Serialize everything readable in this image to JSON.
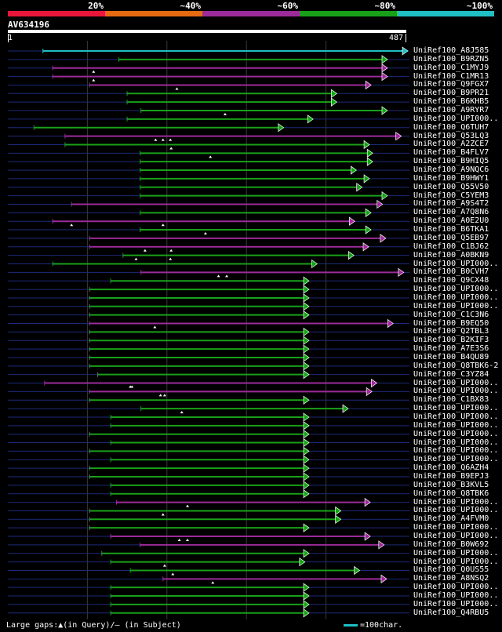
{
  "legend": [
    {
      "label": "20%",
      "color": "#e8173a"
    },
    {
      "label": "~40%",
      "color": "#e56a12"
    },
    {
      "label": "~60%",
      "color": "#9c2b9a"
    },
    {
      "label": "~80%",
      "color": "#19a019"
    },
    {
      "label": "~100%",
      "color": "#1fbfc4"
    }
  ],
  "query": {
    "name": "AV634196",
    "start_label": "1",
    "end_label": "487",
    "length": 487
  },
  "colors": {
    "background": "#000000",
    "track": "#1e2a7a",
    "grid": "#3a3a3a",
    "gap_marker": "#ffffff"
  },
  "hits": [
    {
      "name": "UniRef100_A8J585",
      "start": 43,
      "end": 487,
      "color": "#1fbfc4",
      "gaps": []
    },
    {
      "name": "UniRef100_B9RZN5",
      "start": 136,
      "end": 462,
      "color": "#19a019",
      "gaps": []
    },
    {
      "name": "UniRef100_C1MYJ9",
      "start": 55,
      "end": 462,
      "color": "#9c2b9a",
      "gaps": [
        105
      ]
    },
    {
      "name": "UniRef100_C1MR13",
      "start": 55,
      "end": 462,
      "color": "#9c2b9a",
      "gaps": [
        105
      ]
    },
    {
      "name": "UniRef100_Q9FGX7",
      "start": 100,
      "end": 442,
      "color": "#9c2b9a",
      "gaps": [
        207
      ]
    },
    {
      "name": "UniRef100_B9PR21",
      "start": 146,
      "end": 400,
      "color": "#19a019",
      "gaps": []
    },
    {
      "name": "UniRef100_B6KHB5",
      "start": 146,
      "end": 400,
      "color": "#19a019",
      "gaps": []
    },
    {
      "name": "UniRef100_A9RYR7",
      "start": 163,
      "end": 462,
      "color": "#19a019",
      "gaps": [
        266
      ]
    },
    {
      "name": "UniRef100_UPI000..",
      "start": 146,
      "end": 371,
      "color": "#19a019",
      "gaps": []
    },
    {
      "name": "UniRef100_Q6TUH7",
      "start": 32,
      "end": 335,
      "color": "#19a019",
      "gaps": []
    },
    {
      "name": "UniRef100_Q53LQ3",
      "start": 70,
      "end": 479,
      "color": "#9c2b9a",
      "gaps": [
        181,
        190,
        199
      ]
    },
    {
      "name": "UniRef100_A2ZCE7",
      "start": 70,
      "end": 440,
      "color": "#19a019",
      "gaps": [
        200
      ]
    },
    {
      "name": "UniRef100_B4FLV7",
      "start": 162,
      "end": 444,
      "color": "#19a019",
      "gaps": [
        248
      ]
    },
    {
      "name": "UniRef100_B9HIQ5",
      "start": 162,
      "end": 444,
      "color": "#19a019",
      "gaps": []
    },
    {
      "name": "UniRef100_A9NQC6",
      "start": 162,
      "end": 424,
      "color": "#19a019",
      "gaps": []
    },
    {
      "name": "UniRef100_B9HWY1",
      "start": 162,
      "end": 440,
      "color": "#19a019",
      "gaps": []
    },
    {
      "name": "UniRef100_Q55V50",
      "start": 162,
      "end": 431,
      "color": "#19a019",
      "gaps": []
    },
    {
      "name": "UniRef100_C5YEM3",
      "start": 162,
      "end": 462,
      "color": "#19a019",
      "gaps": []
    },
    {
      "name": "UniRef100_A9S4T2",
      "start": 78,
      "end": 456,
      "color": "#9c2b9a",
      "gaps": []
    },
    {
      "name": "UniRef100_A7Q8N6",
      "start": 162,
      "end": 442,
      "color": "#19a019",
      "gaps": []
    },
    {
      "name": "UniRef100_A0E2U0",
      "start": 55,
      "end": 422,
      "color": "#9c2b9a",
      "gaps": [
        78,
        190
      ]
    },
    {
      "name": "UniRef100_B6TKA1",
      "start": 162,
      "end": 442,
      "color": "#19a019",
      "gaps": [
        242
      ]
    },
    {
      "name": "UniRef100_Q5EB97",
      "start": 100,
      "end": 460,
      "color": "#9c2b9a",
      "gaps": []
    },
    {
      "name": "UniRef100_C1BJ62",
      "start": 100,
      "end": 439,
      "color": "#9c2b9a",
      "gaps": [
        168,
        200
      ]
    },
    {
      "name": "UniRef100_A0BKN9",
      "start": 141,
      "end": 421,
      "color": "#19a019",
      "gaps": [
        157,
        199
      ]
    },
    {
      "name": "UniRef100_UPI000..",
      "start": 55,
      "end": 376,
      "color": "#19a019",
      "gaps": []
    },
    {
      "name": "UniRef100_B0CVH7",
      "start": 163,
      "end": 482,
      "color": "#9c2b9a",
      "gaps": [
        258,
        268
      ]
    },
    {
      "name": "UniRef100_Q9CX48",
      "start": 126,
      "end": 366,
      "color": "#19a019",
      "gaps": []
    },
    {
      "name": "UniRef100_UPI000..",
      "start": 100,
      "end": 366,
      "color": "#19a019",
      "gaps": []
    },
    {
      "name": "UniRef100_UPI000..",
      "start": 100,
      "end": 366,
      "color": "#19a019",
      "gaps": []
    },
    {
      "name": "UniRef100_UPI000..",
      "start": 100,
      "end": 366,
      "color": "#19a019",
      "gaps": []
    },
    {
      "name": "UniRef100_C1C3N6",
      "start": 100,
      "end": 366,
      "color": "#19a019",
      "gaps": []
    },
    {
      "name": "UniRef100_B9EQ50",
      "start": 100,
      "end": 469,
      "color": "#9c2b9a",
      "gaps": [
        180
      ]
    },
    {
      "name": "UniRef100_Q2TBL3",
      "start": 100,
      "end": 366,
      "color": "#19a019",
      "gaps": []
    },
    {
      "name": "UniRef100_B2KIF3",
      "start": 100,
      "end": 366,
      "color": "#19a019",
      "gaps": []
    },
    {
      "name": "UniRef100_A7E3S6",
      "start": 100,
      "end": 366,
      "color": "#19a019",
      "gaps": []
    },
    {
      "name": "UniRef100_B4QU89",
      "start": 100,
      "end": 366,
      "color": "#19a019",
      "gaps": []
    },
    {
      "name": "UniRef100_Q8TBK6-2",
      "start": 100,
      "end": 366,
      "color": "#19a019",
      "gaps": []
    },
    {
      "name": "UniRef100_C3YZ84",
      "start": 110,
      "end": 366,
      "color": "#19a019",
      "gaps": []
    },
    {
      "name": "UniRef100_UPI000..",
      "start": 45,
      "end": 449,
      "color": "#9c2b9a",
      "gaps": [
        150,
        152
      ]
    },
    {
      "name": "UniRef100_UPI000..",
      "start": 100,
      "end": 443,
      "color": "#9c2b9a",
      "gaps": [
        187,
        192
      ]
    },
    {
      "name": "UniRef100_C1BX83",
      "start": 100,
      "end": 366,
      "color": "#19a019",
      "gaps": []
    },
    {
      "name": "UniRef100_UPI000..",
      "start": 163,
      "end": 414,
      "color": "#19a019",
      "gaps": [
        213
      ]
    },
    {
      "name": "UniRef100_UPI000..",
      "start": 126,
      "end": 366,
      "color": "#19a019",
      "gaps": []
    },
    {
      "name": "UniRef100_UPI000..",
      "start": 126,
      "end": 366,
      "color": "#19a019",
      "gaps": []
    },
    {
      "name": "UniRef100_UPI000..",
      "start": 100,
      "end": 366,
      "color": "#19a019",
      "gaps": []
    },
    {
      "name": "UniRef100_UPI000..",
      "start": 126,
      "end": 366,
      "color": "#19a019",
      "gaps": []
    },
    {
      "name": "UniRef100_UPI000..",
      "start": 100,
      "end": 366,
      "color": "#19a019",
      "gaps": []
    },
    {
      "name": "UniRef100_UPI000..",
      "start": 126,
      "end": 366,
      "color": "#19a019",
      "gaps": []
    },
    {
      "name": "UniRef100_Q6AZH4",
      "start": 100,
      "end": 366,
      "color": "#19a019",
      "gaps": []
    },
    {
      "name": "UniRef100_B9EPJ3",
      "start": 100,
      "end": 366,
      "color": "#19a019",
      "gaps": []
    },
    {
      "name": "UniRef100_B3KVL5",
      "start": 126,
      "end": 366,
      "color": "#19a019",
      "gaps": []
    },
    {
      "name": "UniRef100_Q8TBK6",
      "start": 126,
      "end": 366,
      "color": "#19a019",
      "gaps": []
    },
    {
      "name": "UniRef100_UPI000..",
      "start": 133,
      "end": 441,
      "color": "#9c2b9a",
      "gaps": [
        220
      ]
    },
    {
      "name": "UniRef100_UPI000..",
      "start": 100,
      "end": 405,
      "color": "#19a019",
      "gaps": [
        190
      ]
    },
    {
      "name": "UniRef100_A4FVM0",
      "start": 100,
      "end": 405,
      "color": "#19a019",
      "gaps": []
    },
    {
      "name": "UniRef100_UPI000..",
      "start": 100,
      "end": 366,
      "color": "#19a019",
      "gaps": []
    },
    {
      "name": "UniRef100_UPI000..",
      "start": 126,
      "end": 441,
      "color": "#9c2b9a",
      "gaps": [
        210,
        220
      ]
    },
    {
      "name": "UniRef100_B0W692",
      "start": 162,
      "end": 458,
      "color": "#9c2b9a",
      "gaps": []
    },
    {
      "name": "UniRef100_UPI000..",
      "start": 115,
      "end": 366,
      "color": "#19a019",
      "gaps": []
    },
    {
      "name": "UniRef100_UPI000..",
      "start": 126,
      "end": 361,
      "color": "#19a019",
      "gaps": [
        192
      ]
    },
    {
      "name": "UniRef100_Q0US55",
      "start": 150,
      "end": 428,
      "color": "#19a019",
      "gaps": [
        202
      ]
    },
    {
      "name": "UniRef100_A8NSQ2",
      "start": 190,
      "end": 461,
      "color": "#9c2b9a",
      "gaps": [
        251
      ]
    },
    {
      "name": "UniRef100_UPI000..",
      "start": 126,
      "end": 366,
      "color": "#19a019",
      "gaps": []
    },
    {
      "name": "UniRef100_UPI000..",
      "start": 126,
      "end": 366,
      "color": "#19a019",
      "gaps": []
    },
    {
      "name": "UniRef100_UPI000..",
      "start": 126,
      "end": 366,
      "color": "#19a019",
      "gaps": []
    },
    {
      "name": "UniRef100_Q4RBU5",
      "start": 126,
      "end": 366,
      "color": "#19a019",
      "gaps": []
    }
  ],
  "footer": {
    "text": "Large gaps:▲(in Query)/— (in Subject)",
    "scale_text": "=100char."
  }
}
